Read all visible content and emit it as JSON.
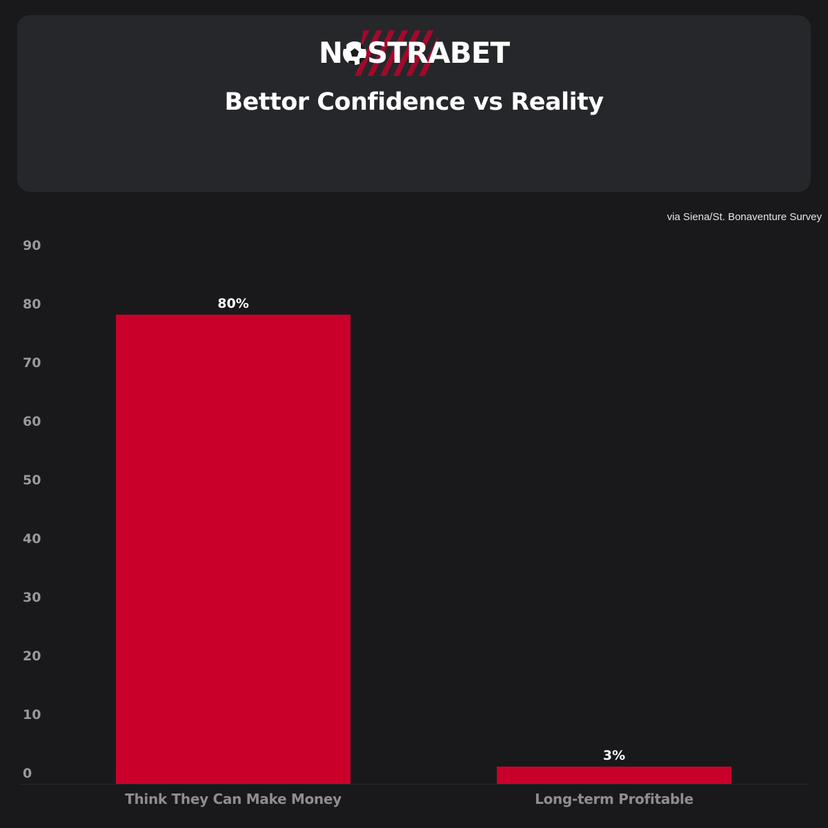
{
  "header": {
    "logo_prefix": "N",
    "logo_suffix": "STRABET",
    "title": "Bettor Confidence vs Reality"
  },
  "source": "via Siena/St. Bonaventure Survey",
  "colors": {
    "background": "#19191c",
    "card": "#26272b",
    "bar": "#c8002a",
    "axis_text": "#9a9a9c"
  },
  "chart_data": {
    "type": "bar",
    "title": "Bettor Confidence vs Reality",
    "subtitle": "via Siena/St. Bonaventure Survey",
    "categories": [
      "Think They Can Make Money",
      "Long-term Profitable"
    ],
    "values": [
      80,
      3
    ],
    "data_labels": [
      "80%",
      "3%"
    ],
    "xlabel": "",
    "ylabel": "",
    "ylim": [
      0,
      90
    ],
    "yticks": [
      0,
      10,
      20,
      30,
      40,
      50,
      60,
      70,
      80,
      90
    ],
    "grid": false,
    "legend": null
  }
}
